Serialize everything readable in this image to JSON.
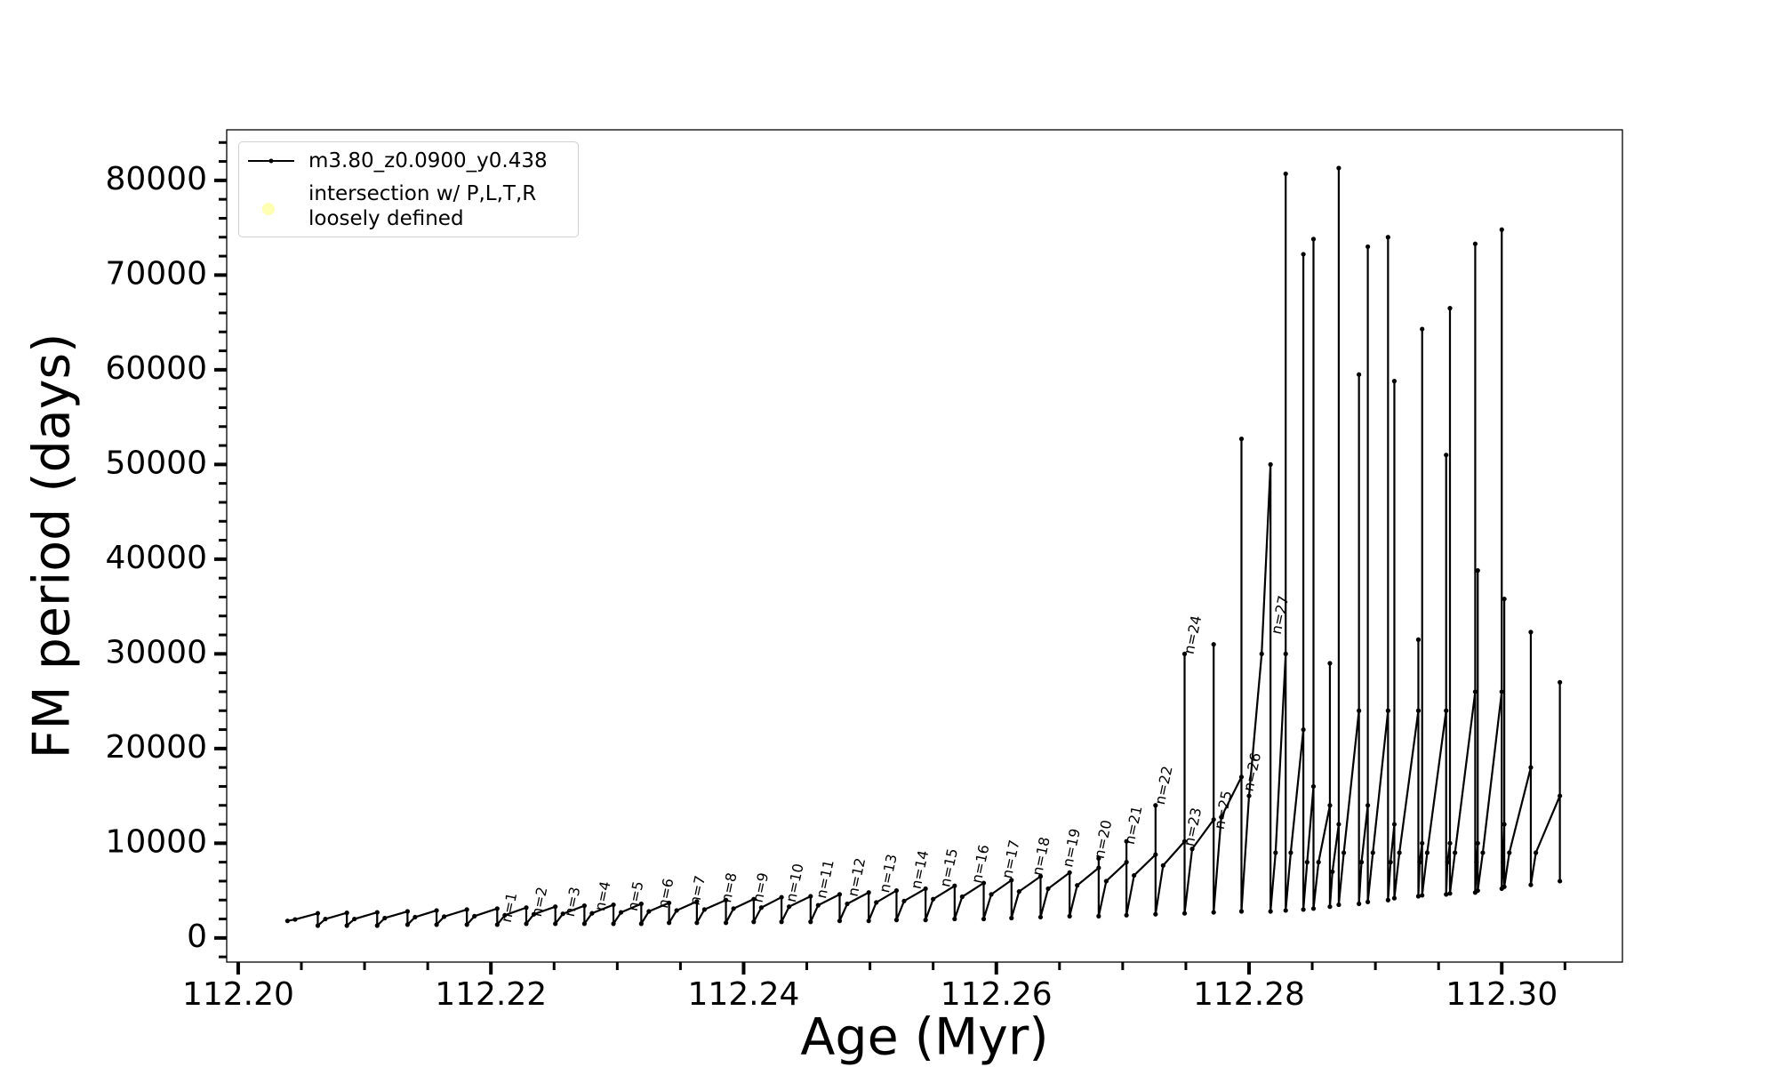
{
  "chart_data": {
    "type": "line",
    "xlabel": "Age (Myr)",
    "ylabel": "FM period (days)",
    "xlim": [
      112.19909,
      112.30955
    ],
    "ylim": [
      -2550,
      85340
    ],
    "xticks": [
      {
        "value": 112.2,
        "label": "112.20"
      },
      {
        "value": 112.22,
        "label": "112.22"
      },
      {
        "value": 112.24,
        "label": "112.24"
      },
      {
        "value": 112.26,
        "label": "112.26"
      },
      {
        "value": 112.28,
        "label": "112.28"
      },
      {
        "value": 112.3,
        "label": "112.30"
      }
    ],
    "xminorticks": [
      112.205,
      112.21,
      112.215,
      112.225,
      112.23,
      112.235,
      112.245,
      112.25,
      112.255,
      112.265,
      112.27,
      112.275,
      112.285,
      112.29,
      112.295,
      112.305
    ],
    "yticks": [
      0,
      10000,
      20000,
      30000,
      40000,
      50000,
      60000,
      70000,
      80000
    ],
    "yminorticks": [
      -2000,
      2000,
      4000,
      6000,
      8000,
      12000,
      14000,
      16000,
      18000,
      22000,
      24000,
      26000,
      28000,
      32000,
      34000,
      36000,
      38000,
      42000,
      44000,
      46000,
      48000,
      52000,
      54000,
      56000,
      58000,
      62000,
      64000,
      66000,
      68000,
      72000,
      74000,
      76000,
      78000,
      82000,
      84000
    ],
    "legend": "upper left",
    "series": [
      {
        "name": "m3.80_z0.0900_y0.438",
        "color": "#000000",
        "x": [
          112.2039,
          112.2045,
          112.2063,
          112.2063,
          112.2069,
          112.2086,
          112.2086,
          112.2092,
          112.211,
          112.211,
          112.2116,
          112.2134,
          112.2134,
          112.214,
          112.2157,
          112.2157,
          112.2163,
          112.2181,
          112.2181,
          112.2187,
          112.2205,
          112.2205,
          112.2211,
          112.2228,
          112.2228,
          112.2234,
          112.2251,
          112.2251,
          112.2257,
          112.2274,
          112.2274,
          112.228,
          112.2297,
          112.2297,
          112.2303,
          112.2319,
          112.2319,
          112.2325,
          112.2341,
          112.2341,
          112.2347,
          112.2363,
          112.2363,
          112.2369,
          112.2386,
          112.2386,
          112.2392,
          112.2408,
          112.2408,
          112.2414,
          112.243,
          112.243,
          112.2436,
          112.2453,
          112.2453,
          112.2459,
          112.2476,
          112.2476,
          112.2482,
          112.2499,
          112.2499,
          112.2505,
          112.2521,
          112.2521,
          112.2527,
          112.2544,
          112.2544,
          112.255,
          112.2567,
          112.2567,
          112.2573,
          112.259,
          112.259,
          112.2596,
          112.2612,
          112.2612,
          112.2618,
          112.2635,
          112.2635,
          112.2641,
          112.2658,
          112.2658,
          112.2664,
          112.2681,
          112.2681,
          112.2681,
          112.2687,
          112.2703,
          112.2703,
          112.2703,
          112.2709,
          112.2726,
          112.2726,
          112.2726,
          112.2732,
          112.2749,
          112.2749,
          112.2749,
          112.2755,
          112.2772,
          112.2772,
          112.2772,
          112.2778,
          112.2794,
          112.2794,
          112.2794,
          112.28,
          112.281,
          112.2817,
          112.2817,
          112.2821,
          112.2829,
          112.2829,
          112.2829,
          112.2833,
          112.2843,
          112.2843,
          112.2843,
          112.2846,
          112.2851,
          112.2851,
          112.2851,
          112.2855,
          112.2864,
          112.2864,
          112.2864,
          112.2866,
          112.2871,
          112.2871,
          112.2871,
          112.2875,
          112.2887,
          112.2887,
          112.2887,
          112.2889,
          112.2894,
          112.2894,
          112.2894,
          112.2898,
          112.291,
          112.291,
          112.291,
          112.2912,
          112.2915,
          112.2915,
          112.2915,
          112.2919,
          112.2934,
          112.2934,
          112.2934,
          112.2935,
          112.2937,
          112.2937,
          112.2937,
          112.2941,
          112.2956,
          112.2956,
          112.2956,
          112.2957,
          112.2959,
          112.2959,
          112.2959,
          112.2963,
          112.2979,
          112.2979,
          112.2979,
          112.298,
          112.2981,
          112.2981,
          112.2981,
          112.2985,
          112.3,
          112.3,
          112.3,
          112.3001,
          112.3002,
          112.3002,
          112.3002,
          112.3006,
          112.3023,
          112.3023,
          112.3023,
          112.3027,
          112.3046,
          112.3046,
          112.3046
        ],
        "values": [
          1800,
          1950,
          2600,
          1300,
          2000,
          2650,
          1300,
          2000,
          2700,
          1300,
          2100,
          2800,
          1400,
          2200,
          2900,
          1400,
          2250,
          3000,
          1400,
          2300,
          3100,
          1400,
          2400,
          3200,
          1500,
          2500,
          3300,
          1500,
          2550,
          3400,
          1500,
          2600,
          3500,
          1500,
          2700,
          3600,
          1500,
          2800,
          3700,
          1600,
          2900,
          3850,
          1600,
          3000,
          4000,
          1600,
          3100,
          4100,
          1700,
          3200,
          4300,
          1700,
          3300,
          4400,
          1700,
          3450,
          4600,
          1800,
          3600,
          4800,
          1800,
          3750,
          5000,
          1900,
          3900,
          5200,
          1900,
          4100,
          5500,
          2000,
          4350,
          5800,
          2000,
          4600,
          6100,
          2100,
          4900,
          6500,
          2200,
          5200,
          6900,
          2300,
          5550,
          7400,
          8400,
          2300,
          6000,
          8000,
          10200,
          2400,
          6600,
          8800,
          14000,
          2500,
          7650,
          10200,
          30000,
          2600,
          9400,
          12500,
          31000,
          2700,
          12750,
          17000,
          52700,
          2800,
          15000,
          30000,
          50000,
          2800,
          9000,
          30000,
          80700,
          2900,
          9000,
          22000,
          72200,
          3000,
          8000,
          16000,
          73800,
          3100,
          8000,
          14000,
          29000,
          3300,
          7000,
          12000,
          81300,
          3500,
          9000,
          24000,
          59500,
          3600,
          8000,
          14000,
          73000,
          3800,
          9000,
          24000,
          74000,
          4000,
          8000,
          12000,
          58800,
          4200,
          9000,
          24000,
          31500,
          4400,
          8000,
          10000,
          64300,
          4500,
          9000,
          24000,
          51000,
          4600,
          8000,
          10000,
          66500,
          4700,
          9000,
          26000,
          73300,
          4800,
          8000,
          10000,
          38800,
          5000,
          9000,
          26000,
          74800,
          5200,
          8000,
          12000,
          35800,
          5400,
          9000,
          18000,
          32300,
          5600,
          9000,
          15000,
          27000,
          6000
        ]
      },
      {
        "name": "intersection w/ P,L,T,R\nloosely defined",
        "color": "#ffffb3",
        "x": [],
        "values": []
      }
    ],
    "annotations": [
      {
        "text": "n=1",
        "x": 112.2215,
        "y": 3200
      },
      {
        "text": "n=2",
        "x": 112.2239,
        "y": 3800
      },
      {
        "text": "n=3",
        "x": 112.2265,
        "y": 3800
      },
      {
        "text": "n=4",
        "x": 112.2289,
        "y": 4400
      },
      {
        "text": "n=5",
        "x": 112.2315,
        "y": 4400
      },
      {
        "text": "n=6",
        "x": 112.2339,
        "y": 4700
      },
      {
        "text": "n=7",
        "x": 112.2364,
        "y": 5000
      },
      {
        "text": "n=8",
        "x": 112.2389,
        "y": 5300
      },
      {
        "text": "n=9",
        "x": 112.2414,
        "y": 5300
      },
      {
        "text": "n=10",
        "x": 112.2441,
        "y": 5800
      },
      {
        "text": "n=11",
        "x": 112.2465,
        "y": 6200
      },
      {
        "text": "n=12",
        "x": 112.249,
        "y": 6400
      },
      {
        "text": "n=13",
        "x": 112.2515,
        "y": 6800
      },
      {
        "text": "n=14",
        "x": 112.254,
        "y": 7200
      },
      {
        "text": "n=15",
        "x": 112.2563,
        "y": 7400
      },
      {
        "text": "n=16",
        "x": 112.2588,
        "y": 7800
      },
      {
        "text": "n=17",
        "x": 112.2612,
        "y": 8300
      },
      {
        "text": "n=18",
        "x": 112.2636,
        "y": 8600
      },
      {
        "text": "n=19",
        "x": 112.266,
        "y": 9500
      },
      {
        "text": "n=20",
        "x": 112.2685,
        "y": 10400
      },
      {
        "text": "n=21",
        "x": 112.2709,
        "y": 11900
      },
      {
        "text": "n=22",
        "x": 112.2733,
        "y": 16100
      },
      {
        "text": "n=23",
        "x": 112.2756,
        "y": 11700
      },
      {
        "text": "n=24",
        "x": 112.2756,
        "y": 32000
      },
      {
        "text": "n=25",
        "x": 112.278,
        "y": 13500
      },
      {
        "text": "n=26",
        "x": 112.2803,
        "y": 17500
      },
      {
        "text": "n=27",
        "x": 112.2825,
        "y": 34100
      }
    ]
  }
}
